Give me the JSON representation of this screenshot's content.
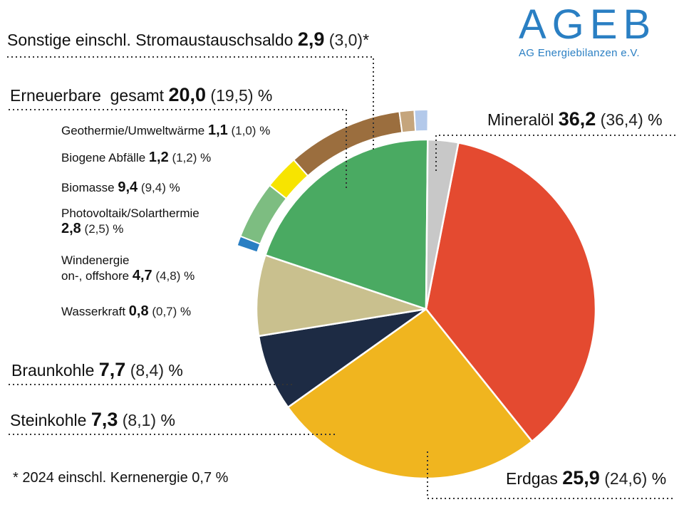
{
  "logo": {
    "word": "AGEB",
    "subtitle": "AG Energiebilanzen e.V."
  },
  "footnote": "* 2024 einschl. Kernenergie 0,7 %",
  "colors": {
    "mineraloel": "#e44a30",
    "erdgas": "#f0b51f",
    "steinkohle": "#1d2b44",
    "braunkohle": "#c9c08e",
    "erneuerbare": "#4aaa62",
    "sonstige": "#c8c8c8",
    "wasserkraft": "#2a7fc3",
    "wind": "#7dbd81",
    "pv": "#f7e400",
    "biomasse": "#9b6e3e",
    "biogen": "#c5a57c",
    "geo": "#b3c9ea"
  },
  "chart_data": {
    "type": "pie",
    "unit": "%",
    "slices": [
      {
        "key": "mineraloel",
        "name": "Mineralöl",
        "value": 36.2,
        "value_text": "36,2",
        "prev_text": "(36,4)",
        "unit": "%"
      },
      {
        "key": "erdgas",
        "name": "Erdgas",
        "value": 25.9,
        "value_text": "25,9",
        "prev_text": "(24,6)",
        "unit": "%"
      },
      {
        "key": "steinkohle",
        "name": "Steinkohle",
        "value": 7.3,
        "value_text": "7,3",
        "prev_text": "(8,1)",
        "unit": "%"
      },
      {
        "key": "braunkohle",
        "name": "Braunkohle",
        "value": 7.7,
        "value_text": "7,7",
        "prev_text": "(8,4)",
        "unit": "%"
      },
      {
        "key": "erneuerbare",
        "name": "Erneuerbare  gesamt",
        "value": 20.0,
        "value_text": "20,0",
        "prev_text": "(19,5)",
        "unit": "%"
      },
      {
        "key": "sonstige",
        "name": "Sonstige einschl. Stromaustauschsaldo",
        "value": 2.9,
        "value_text": "2,9",
        "prev_text": "(3,0)",
        "unit": "*"
      }
    ],
    "renewables_breakdown": [
      {
        "key": "wasserkraft",
        "name": "Wasserkraft",
        "value": 0.8,
        "value_text": "0,8",
        "prev_text": "(0,7)",
        "unit": "%"
      },
      {
        "key": "wind",
        "name_line1": "Windenergie",
        "name_line2": "on-, offshore",
        "value": 4.7,
        "value_text": "4,7",
        "prev_text": "(4,8)",
        "unit": "%"
      },
      {
        "key": "pv",
        "name": "Photovoltaik/Solarthermie",
        "value": 2.8,
        "value_text": "2,8",
        "prev_text": "(2,5)",
        "unit": "%"
      },
      {
        "key": "biomasse",
        "name": "Biomasse",
        "value": 9.4,
        "value_text": "9,4",
        "prev_text": "(9,4)",
        "unit": "%"
      },
      {
        "key": "biogen",
        "name": "Biogene Abfälle",
        "value": 1.2,
        "value_text": "1,2",
        "prev_text": "(1,2)",
        "unit": "%"
      },
      {
        "key": "geo",
        "name": "Geothermie/Umweltwärme",
        "value": 1.1,
        "value_text": "1,1",
        "prev_text": "(1,0)",
        "unit": "%"
      }
    ]
  }
}
